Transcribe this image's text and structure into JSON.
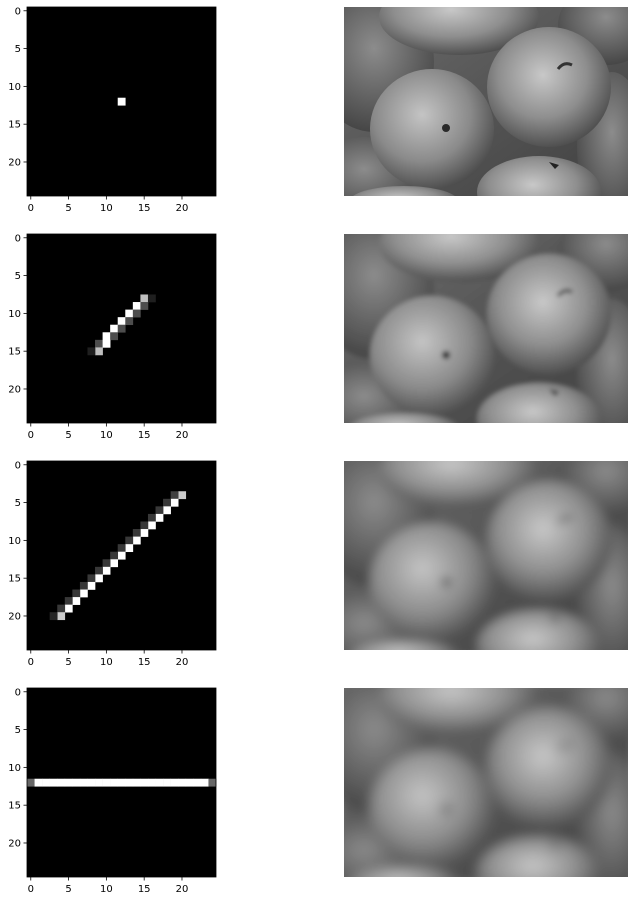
{
  "chart_data": [
    {
      "type": "heatmap",
      "panel": "kernel",
      "colormap": "gray",
      "shape": [
        25,
        25
      ],
      "xticks": [
        0,
        5,
        10,
        15,
        20
      ],
      "yticks": [
        0,
        5,
        10,
        15,
        20
      ],
      "cells": [
        {
          "row": 12,
          "col": 12,
          "value": 1.0
        }
      ]
    },
    {
      "type": "heatmap",
      "panel": "kernel",
      "colormap": "gray",
      "shape": [
        25,
        25
      ],
      "xticks": [
        0,
        5,
        10,
        15,
        20
      ],
      "yticks": [
        0,
        5,
        10,
        15,
        20
      ],
      "cells": [
        {
          "row": 8,
          "col": 15,
          "value": 0.75
        },
        {
          "row": 8,
          "col": 16,
          "value": 0.12
        },
        {
          "row": 9,
          "col": 14,
          "value": 1.0
        },
        {
          "row": 9,
          "col": 15,
          "value": 0.3
        },
        {
          "row": 10,
          "col": 13,
          "value": 1.0
        },
        {
          "row": 10,
          "col": 14,
          "value": 0.3
        },
        {
          "row": 11,
          "col": 12,
          "value": 1.0
        },
        {
          "row": 11,
          "col": 13,
          "value": 0.3
        },
        {
          "row": 12,
          "col": 11,
          "value": 1.0
        },
        {
          "row": 12,
          "col": 12,
          "value": 0.3
        },
        {
          "row": 13,
          "col": 10,
          "value": 1.0
        },
        {
          "row": 13,
          "col": 11,
          "value": 0.3
        },
        {
          "row": 14,
          "col": 9,
          "value": 0.3
        },
        {
          "row": 14,
          "col": 10,
          "value": 1.0
        },
        {
          "row": 15,
          "col": 9,
          "value": 0.75
        },
        {
          "row": 15,
          "col": 8,
          "value": 0.12
        }
      ]
    },
    {
      "type": "heatmap",
      "panel": "kernel",
      "colormap": "gray",
      "shape": [
        25,
        25
      ],
      "xticks": [
        0,
        5,
        10,
        15,
        20
      ],
      "yticks": [
        0,
        5,
        10,
        15,
        20
      ],
      "cells": [
        {
          "row": 4,
          "col": 20,
          "value": 0.8
        },
        {
          "row": 4,
          "col": 19,
          "value": 0.25
        },
        {
          "row": 5,
          "col": 19,
          "value": 1.0
        },
        {
          "row": 5,
          "col": 18,
          "value": 0.22
        },
        {
          "row": 6,
          "col": 18,
          "value": 1.0
        },
        {
          "row": 6,
          "col": 17,
          "value": 0.22
        },
        {
          "row": 7,
          "col": 17,
          "value": 1.0
        },
        {
          "row": 7,
          "col": 16,
          "value": 0.22
        },
        {
          "row": 8,
          "col": 16,
          "value": 1.0
        },
        {
          "row": 8,
          "col": 15,
          "value": 0.22
        },
        {
          "row": 9,
          "col": 15,
          "value": 1.0
        },
        {
          "row": 9,
          "col": 14,
          "value": 0.22
        },
        {
          "row": 10,
          "col": 14,
          "value": 1.0
        },
        {
          "row": 10,
          "col": 13,
          "value": 0.22
        },
        {
          "row": 11,
          "col": 13,
          "value": 1.0
        },
        {
          "row": 11,
          "col": 12,
          "value": 0.22
        },
        {
          "row": 12,
          "col": 12,
          "value": 1.0
        },
        {
          "row": 12,
          "col": 11,
          "value": 0.22
        },
        {
          "row": 13,
          "col": 11,
          "value": 1.0
        },
        {
          "row": 13,
          "col": 10,
          "value": 0.22
        },
        {
          "row": 14,
          "col": 10,
          "value": 1.0
        },
        {
          "row": 14,
          "col": 9,
          "value": 0.22
        },
        {
          "row": 15,
          "col": 9,
          "value": 1.0
        },
        {
          "row": 15,
          "col": 8,
          "value": 0.22
        },
        {
          "row": 16,
          "col": 8,
          "value": 1.0
        },
        {
          "row": 16,
          "col": 7,
          "value": 0.22
        },
        {
          "row": 17,
          "col": 7,
          "value": 1.0
        },
        {
          "row": 17,
          "col": 6,
          "value": 0.22
        },
        {
          "row": 18,
          "col": 6,
          "value": 1.0
        },
        {
          "row": 18,
          "col": 5,
          "value": 0.22
        },
        {
          "row": 19,
          "col": 5,
          "value": 1.0
        },
        {
          "row": 19,
          "col": 4,
          "value": 0.22
        },
        {
          "row": 20,
          "col": 4,
          "value": 0.8
        },
        {
          "row": 20,
          "col": 3,
          "value": 0.15
        }
      ]
    },
    {
      "type": "heatmap",
      "panel": "kernel",
      "colormap": "gray",
      "shape": [
        25,
        25
      ],
      "xticks": [
        0,
        5,
        10,
        15,
        20
      ],
      "yticks": [
        0,
        5,
        10,
        15,
        20
      ],
      "cells": [
        {
          "row": 12,
          "col": 0,
          "value": 0.4
        },
        {
          "row": 12,
          "col": 1,
          "value": 1.0
        },
        {
          "row": 12,
          "col": 2,
          "value": 1.0
        },
        {
          "row": 12,
          "col": 3,
          "value": 1.0
        },
        {
          "row": 12,
          "col": 4,
          "value": 1.0
        },
        {
          "row": 12,
          "col": 5,
          "value": 1.0
        },
        {
          "row": 12,
          "col": 6,
          "value": 1.0
        },
        {
          "row": 12,
          "col": 7,
          "value": 1.0
        },
        {
          "row": 12,
          "col": 8,
          "value": 1.0
        },
        {
          "row": 12,
          "col": 9,
          "value": 1.0
        },
        {
          "row": 12,
          "col": 10,
          "value": 1.0
        },
        {
          "row": 12,
          "col": 11,
          "value": 1.0
        },
        {
          "row": 12,
          "col": 12,
          "value": 1.0
        },
        {
          "row": 12,
          "col": 13,
          "value": 1.0
        },
        {
          "row": 12,
          "col": 14,
          "value": 1.0
        },
        {
          "row": 12,
          "col": 15,
          "value": 1.0
        },
        {
          "row": 12,
          "col": 16,
          "value": 1.0
        },
        {
          "row": 12,
          "col": 17,
          "value": 1.0
        },
        {
          "row": 12,
          "col": 18,
          "value": 1.0
        },
        {
          "row": 12,
          "col": 19,
          "value": 1.0
        },
        {
          "row": 12,
          "col": 20,
          "value": 1.0
        },
        {
          "row": 12,
          "col": 21,
          "value": 1.0
        },
        {
          "row": 12,
          "col": 22,
          "value": 1.0
        },
        {
          "row": 12,
          "col": 23,
          "value": 1.0
        },
        {
          "row": 12,
          "col": 24,
          "value": 0.4
        }
      ]
    }
  ],
  "photos": [
    {
      "subject": "apples-and-orange",
      "blur": 0
    },
    {
      "subject": "apples-and-orange",
      "blur": 2.5
    },
    {
      "subject": "apples-and-orange",
      "blur": 5
    },
    {
      "subject": "apples-and-orange",
      "blur": 6
    }
  ]
}
